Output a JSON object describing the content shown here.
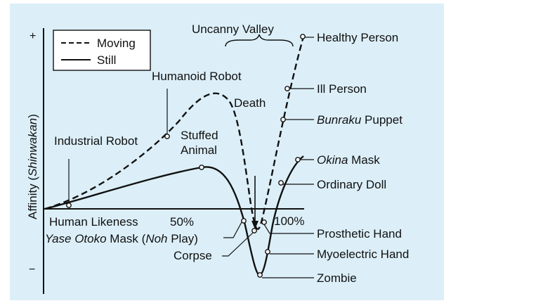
{
  "diagram": {
    "axes": {
      "y_label_plain": "Affinity (",
      "y_label_italic": "Shinwakan",
      "y_label_close": ")",
      "y_plus": "+",
      "y_minus": "−",
      "x_label": "Human Likeness",
      "x_tick_50": "50%",
      "x_tick_100": "100%"
    },
    "legend": {
      "moving": "Moving",
      "still": "Still",
      "moving_style": "dashed",
      "still_style": "solid"
    },
    "valley_label": "Uncanny Valley",
    "labels": {
      "industrial_robot": "Industrial Robot",
      "humanoid_robot": "Humanoid Robot",
      "stuffed_animal_1": "Stuffed",
      "stuffed_animal_2": "Animal",
      "death": "Death",
      "healthy_person": "Healthy Person",
      "ill_person": "Ill Person",
      "bunraku_italic": "Bunraku",
      "bunraku_rest": " Puppet",
      "okina_italic": "Okina",
      "okina_rest": " Mask",
      "ordinary_doll": "Ordinary Doll",
      "prosthetic_hand": "Prosthetic Hand",
      "myoelectric_hand": "Myoelectric Hand",
      "zombie": "Zombie",
      "yase_italic": "Yase Otoko",
      "yase_mid": " Mask (",
      "noh_italic": "Noh",
      "yase_end": " Play)",
      "corpse": "Corpse"
    },
    "colors": {
      "background": "#dceff8",
      "ink": "#111111"
    }
  }
}
